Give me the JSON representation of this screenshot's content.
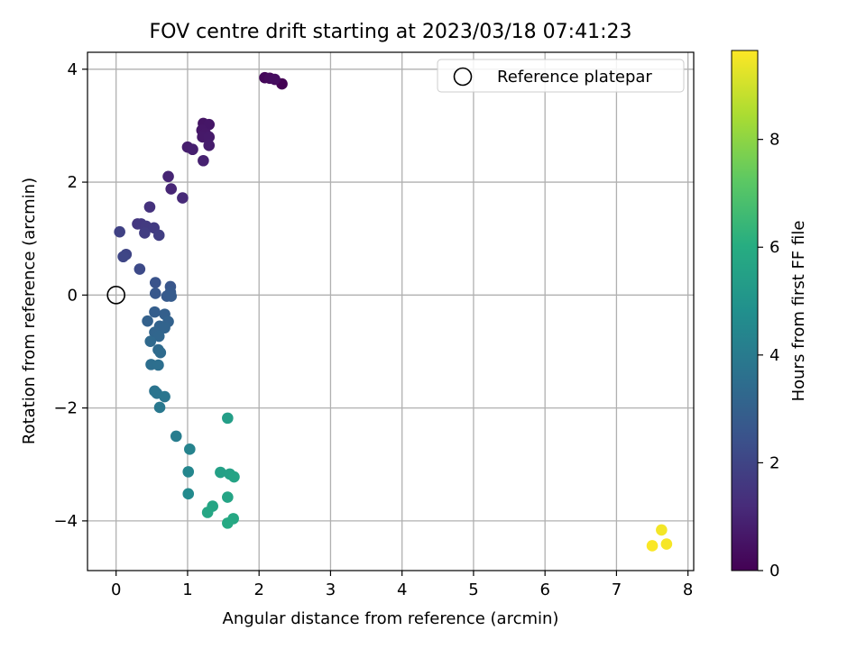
{
  "chart_data": {
    "type": "scatter",
    "title": "FOV centre drift starting at 2023/03/18 07:41:23",
    "xlabel": "Angular distance from reference (arcmin)",
    "ylabel": "Rotation from reference (arcmin)",
    "xlim": [
      -0.4,
      8.08
    ],
    "ylim": [
      -4.88,
      4.3
    ],
    "x_ticks": [
      0,
      1,
      2,
      3,
      4,
      5,
      6,
      7,
      8
    ],
    "y_ticks": [
      -4,
      -2,
      0,
      2,
      4
    ],
    "grid": true,
    "legend": {
      "placement": "top-right",
      "entries": [
        "Reference platepar"
      ]
    },
    "reference_point": {
      "x": 0,
      "y": 0,
      "label": "Reference platepar"
    },
    "colorbar": {
      "label": "Hours from first FF file",
      "range": [
        0,
        9.65
      ],
      "ticks": [
        0,
        2,
        4,
        6,
        8
      ],
      "colormap": "viridis"
    },
    "points": [
      {
        "x": 2.32,
        "y": 3.74,
        "h": 0.0
      },
      {
        "x": 2.08,
        "y": 3.85,
        "h": 0.15
      },
      {
        "x": 2.15,
        "y": 3.84,
        "h": 0.25
      },
      {
        "x": 2.22,
        "y": 3.82,
        "h": 0.35
      },
      {
        "x": 1.22,
        "y": 3.04,
        "h": 0.55
      },
      {
        "x": 1.3,
        "y": 3.02,
        "h": 0.6
      },
      {
        "x": 1.2,
        "y": 2.92,
        "h": 0.62
      },
      {
        "x": 1.25,
        "y": 2.86,
        "h": 0.65
      },
      {
        "x": 1.21,
        "y": 2.8,
        "h": 0.68
      },
      {
        "x": 1.3,
        "y": 2.8,
        "h": 0.7
      },
      {
        "x": 1.3,
        "y": 2.65,
        "h": 0.75
      },
      {
        "x": 1.0,
        "y": 2.62,
        "h": 0.8
      },
      {
        "x": 1.07,
        "y": 2.58,
        "h": 0.85
      },
      {
        "x": 1.22,
        "y": 2.38,
        "h": 0.9
      },
      {
        "x": 0.73,
        "y": 2.1,
        "h": 1.0
      },
      {
        "x": 0.77,
        "y": 1.88,
        "h": 1.05
      },
      {
        "x": 0.93,
        "y": 1.72,
        "h": 1.15
      },
      {
        "x": 0.47,
        "y": 1.56,
        "h": 1.4
      },
      {
        "x": 0.3,
        "y": 1.26,
        "h": 1.55
      },
      {
        "x": 0.35,
        "y": 1.26,
        "h": 1.6
      },
      {
        "x": 0.42,
        "y": 1.22,
        "h": 1.65
      },
      {
        "x": 0.53,
        "y": 1.19,
        "h": 1.7
      },
      {
        "x": 0.4,
        "y": 1.1,
        "h": 1.75
      },
      {
        "x": 0.6,
        "y": 1.06,
        "h": 1.8
      },
      {
        "x": 0.05,
        "y": 1.12,
        "h": 1.9
      },
      {
        "x": 0.14,
        "y": 0.72,
        "h": 2.0
      },
      {
        "x": 0.1,
        "y": 0.68,
        "h": 2.05
      },
      {
        "x": 0.33,
        "y": 0.46,
        "h": 2.2
      },
      {
        "x": 0.55,
        "y": 0.22,
        "h": 2.5
      },
      {
        "x": 0.76,
        "y": 0.15,
        "h": 2.6
      },
      {
        "x": 0.55,
        "y": 0.03,
        "h": 2.65
      },
      {
        "x": 0.76,
        "y": 0.05,
        "h": 2.7
      },
      {
        "x": 0.71,
        "y": -0.02,
        "h": 2.75
      },
      {
        "x": 0.77,
        "y": -0.02,
        "h": 2.8
      },
      {
        "x": 0.54,
        "y": -0.3,
        "h": 2.9
      },
      {
        "x": 0.68,
        "y": -0.34,
        "h": 2.95
      },
      {
        "x": 0.44,
        "y": -0.46,
        "h": 3.0
      },
      {
        "x": 0.73,
        "y": -0.47,
        "h": 3.05
      },
      {
        "x": 0.61,
        "y": -0.55,
        "h": 3.1
      },
      {
        "x": 0.68,
        "y": -0.58,
        "h": 3.12
      },
      {
        "x": 0.54,
        "y": -0.66,
        "h": 3.15
      },
      {
        "x": 0.6,
        "y": -0.73,
        "h": 3.2
      },
      {
        "x": 0.48,
        "y": -0.82,
        "h": 3.3
      },
      {
        "x": 0.59,
        "y": -0.97,
        "h": 3.35
      },
      {
        "x": 0.62,
        "y": -1.02,
        "h": 3.4
      },
      {
        "x": 0.49,
        "y": -1.23,
        "h": 3.5
      },
      {
        "x": 0.59,
        "y": -1.24,
        "h": 3.55
      },
      {
        "x": 0.54,
        "y": -1.7,
        "h": 3.7
      },
      {
        "x": 0.57,
        "y": -1.74,
        "h": 3.75
      },
      {
        "x": 0.68,
        "y": -1.8,
        "h": 3.8
      },
      {
        "x": 0.61,
        "y": -1.99,
        "h": 3.9
      },
      {
        "x": 0.84,
        "y": -2.5,
        "h": 4.1
      },
      {
        "x": 1.03,
        "y": -2.73,
        "h": 4.3
      },
      {
        "x": 1.01,
        "y": -3.13,
        "h": 4.45
      },
      {
        "x": 1.01,
        "y": -3.52,
        "h": 4.6
      },
      {
        "x": 1.56,
        "y": -2.18,
        "h": 5.4
      },
      {
        "x": 1.46,
        "y": -3.14,
        "h": 5.5
      },
      {
        "x": 1.59,
        "y": -3.17,
        "h": 5.55
      },
      {
        "x": 1.65,
        "y": -3.22,
        "h": 5.6
      },
      {
        "x": 1.56,
        "y": -3.58,
        "h": 5.65
      },
      {
        "x": 1.35,
        "y": -3.74,
        "h": 5.7
      },
      {
        "x": 1.28,
        "y": -3.85,
        "h": 5.75
      },
      {
        "x": 1.64,
        "y": -3.96,
        "h": 5.8
      },
      {
        "x": 1.56,
        "y": -4.04,
        "h": 5.85
      },
      {
        "x": 7.63,
        "y": -4.16,
        "h": 9.5
      },
      {
        "x": 7.7,
        "y": -4.41,
        "h": 9.55
      },
      {
        "x": 7.5,
        "y": -4.44,
        "h": 9.6
      }
    ]
  }
}
